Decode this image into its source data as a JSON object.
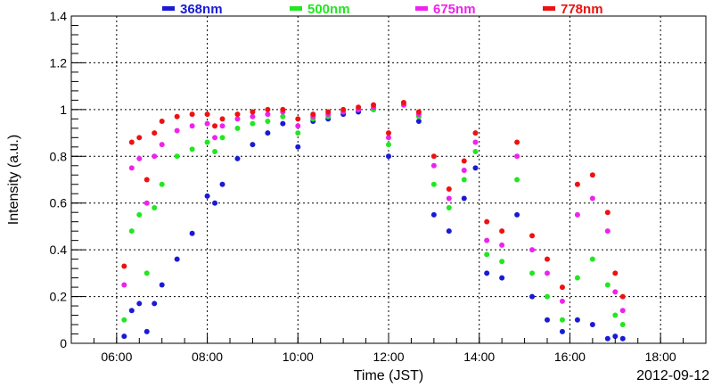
{
  "chart_data": {
    "type": "scatter",
    "title": "",
    "xlabel": "Time (JST)",
    "ylabel": "Intensity (a.u.)",
    "date_label": "2012-09-12",
    "xlim": [
      "05:00",
      "19:00"
    ],
    "ylim": [
      0,
      1.4
    ],
    "x_ticks": [
      "06:00",
      "08:00",
      "10:00",
      "12:00",
      "14:00",
      "16:00",
      "18:00"
    ],
    "y_ticks": [
      "0",
      "0.2",
      "0.4",
      "0.6",
      "0.8",
      "1",
      "1.2",
      "1.4"
    ],
    "grid": true,
    "legend_position": "top",
    "x": [
      "06:10",
      "06:20",
      "06:30",
      "06:40",
      "06:50",
      "07:00",
      "07:20",
      "07:40",
      "08:00",
      "08:10",
      "08:20",
      "08:40",
      "09:00",
      "09:20",
      "09:40",
      "10:00",
      "10:20",
      "10:40",
      "11:00",
      "11:20",
      "11:40",
      "12:00",
      "12:20",
      "12:40",
      "13:00",
      "13:20",
      "13:40",
      "13:55",
      "14:10",
      "14:30",
      "14:50",
      "15:10",
      "15:30",
      "15:50",
      "16:10",
      "16:30",
      "16:50",
      "17:00",
      "17:10"
    ],
    "series": [
      {
        "name": "368nm",
        "color": "#1a1ad6",
        "values": [
          0.03,
          0.14,
          0.17,
          0.05,
          0.17,
          0.25,
          0.36,
          0.47,
          0.63,
          0.6,
          0.68,
          0.79,
          0.85,
          0.9,
          0.94,
          0.84,
          0.95,
          0.96,
          0.98,
          0.99,
          1.0,
          0.8,
          1.02,
          0.95,
          0.55,
          0.48,
          0.62,
          0.75,
          0.3,
          0.28,
          0.55,
          0.2,
          0.1,
          0.05,
          0.1,
          0.08,
          0.02,
          0.03,
          0.02
        ]
      },
      {
        "name": "500nm",
        "color": "#22e622",
        "values": [
          0.1,
          0.48,
          0.55,
          0.3,
          0.58,
          0.68,
          0.8,
          0.83,
          0.86,
          0.82,
          0.88,
          0.92,
          0.94,
          0.95,
          0.97,
          0.9,
          0.96,
          0.97,
          0.99,
          1.0,
          1.0,
          0.85,
          1.02,
          0.97,
          0.68,
          0.58,
          0.7,
          0.82,
          0.38,
          0.35,
          0.7,
          0.3,
          0.2,
          0.1,
          0.28,
          0.36,
          0.25,
          0.12,
          0.08
        ]
      },
      {
        "name": "675nm",
        "color": "#ee22ee",
        "values": [
          0.25,
          0.75,
          0.79,
          0.6,
          0.8,
          0.85,
          0.91,
          0.93,
          0.94,
          0.88,
          0.93,
          0.96,
          0.97,
          0.98,
          0.99,
          0.93,
          0.97,
          0.98,
          0.99,
          1.0,
          1.01,
          0.88,
          1.02,
          0.98,
          0.76,
          0.62,
          0.74,
          0.86,
          0.44,
          0.42,
          0.8,
          0.4,
          0.3,
          0.18,
          0.55,
          0.62,
          0.48,
          0.22,
          0.14
        ]
      },
      {
        "name": "778nm",
        "color": "#ee1111",
        "values": [
          0.33,
          0.86,
          0.88,
          0.7,
          0.9,
          0.95,
          0.97,
          0.98,
          0.98,
          0.93,
          0.96,
          0.98,
          0.99,
          1.0,
          1.0,
          0.96,
          0.98,
          0.99,
          1.0,
          1.01,
          1.02,
          0.9,
          1.03,
          0.99,
          0.8,
          0.66,
          0.78,
          0.9,
          0.52,
          0.48,
          0.86,
          0.46,
          0.36,
          0.24,
          0.68,
          0.72,
          0.56,
          0.3,
          0.2
        ]
      }
    ]
  }
}
